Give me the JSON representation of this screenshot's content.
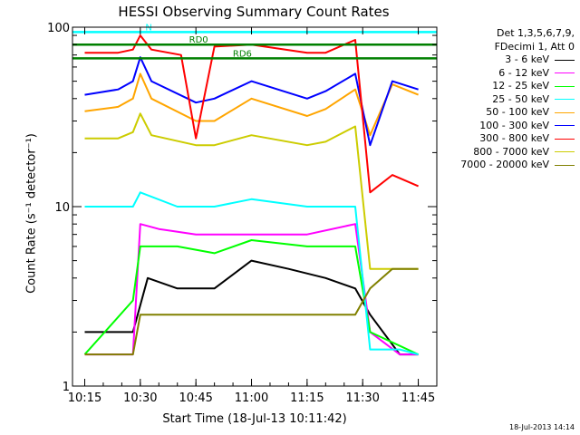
{
  "chart_data": {
    "type": "line",
    "title": "HESSI Observing Summary Count Rates",
    "xlabel": "Start Time (18-Jul-13 10:11:42)",
    "ylabel": "Count Rate (s⁻¹ detector⁻¹)",
    "yscale": "log",
    "ylim": [
      1,
      100
    ],
    "xlim": [
      "10:11:42",
      "11:50:00"
    ],
    "x_ticks": [
      "10:15",
      "10:30",
      "10:45",
      "11:00",
      "11:15",
      "11:30",
      "11:45"
    ],
    "y_ticks": [
      "1",
      "10",
      "100"
    ],
    "grid": false,
    "legend_position": "right",
    "legend_header": [
      "Det 1,3,5,6,7,9,",
      "FDecimi 1, Att 0"
    ],
    "series": [
      {
        "name": "3 - 6 keV",
        "color": "#000000",
        "x": [
          "10:15",
          "10:28",
          "10:32",
          "10:40",
          "10:50",
          "11:00",
          "11:10",
          "11:20",
          "11:28",
          "11:32",
          "11:40",
          "11:45"
        ],
        "y": [
          2,
          2,
          4,
          3.5,
          3.5,
          5,
          4.5,
          4,
          3.5,
          2.5,
          1.5,
          1.5
        ]
      },
      {
        "name": "6 - 12 keV",
        "color": "#ff00ff",
        "x": [
          "10:15",
          "10:28",
          "10:30",
          "10:35",
          "10:45",
          "11:00",
          "11:15",
          "11:28",
          "11:32",
          "11:40",
          "11:45"
        ],
        "y": [
          1.5,
          1.5,
          8,
          7.5,
          7,
          7,
          7,
          8,
          2,
          1.5,
          1.5
        ]
      },
      {
        "name": "12 - 25 keV",
        "color": "#00ff00",
        "x": [
          "10:15",
          "10:28",
          "10:30",
          "10:40",
          "10:50",
          "11:00",
          "11:15",
          "11:28",
          "11:32",
          "11:45"
        ],
        "y": [
          1.5,
          3,
          6,
          6,
          5.5,
          6.5,
          6,
          6,
          2,
          1.5
        ]
      },
      {
        "name": "25 - 50 keV",
        "color": "#00ffff",
        "x": [
          "10:15",
          "10:28",
          "10:30",
          "10:40",
          "10:50",
          "11:00",
          "11:15",
          "11:28",
          "11:32",
          "11:40",
          "11:45"
        ],
        "y": [
          10,
          10,
          12,
          10,
          10,
          11,
          10,
          10,
          1.6,
          1.6,
          1.5
        ]
      },
      {
        "name": "50 - 100 keV",
        "color": "#ffa500",
        "x": [
          "10:15",
          "10:24",
          "10:28",
          "10:30",
          "10:33",
          "10:45",
          "10:50",
          "11:00",
          "11:15",
          "11:20",
          "11:28",
          "11:32",
          "11:38",
          "11:45"
        ],
        "y": [
          34,
          36,
          40,
          55,
          40,
          30,
          30,
          40,
          32,
          35,
          45,
          25,
          48,
          42
        ]
      },
      {
        "name": "100 - 300 keV",
        "color": "#0000ff",
        "x": [
          "10:15",
          "10:24",
          "10:28",
          "10:30",
          "10:33",
          "10:45",
          "10:50",
          "11:00",
          "11:15",
          "11:20",
          "11:28",
          "11:32",
          "11:38",
          "11:45"
        ],
        "y": [
          42,
          45,
          50,
          68,
          50,
          38,
          40,
          50,
          40,
          44,
          55,
          22,
          50,
          45
        ]
      },
      {
        "name": "300 - 800 keV",
        "color": "#ff0000",
        "x": [
          "10:15",
          "10:24",
          "10:28",
          "10:30",
          "10:33",
          "10:41",
          "10:45",
          "10:50",
          "11:00",
          "11:15",
          "11:20",
          "11:28",
          "11:32",
          "11:38",
          "11:45"
        ],
        "y": [
          72,
          72,
          75,
          90,
          75,
          70,
          24,
          78,
          80,
          72,
          72,
          85,
          12,
          15,
          13
        ]
      },
      {
        "name": "800 - 7000 keV",
        "color": "#cccc00",
        "x": [
          "10:15",
          "10:24",
          "10:28",
          "10:30",
          "10:33",
          "10:45",
          "10:50",
          "11:00",
          "11:15",
          "11:20",
          "11:28",
          "11:32",
          "11:38",
          "11:45"
        ],
        "y": [
          24,
          24,
          26,
          33,
          25,
          22,
          22,
          25,
          22,
          23,
          28,
          4.5,
          4.5,
          4.5
        ]
      },
      {
        "name": "7000 - 20000 keV",
        "color": "#808000",
        "x": [
          "10:15",
          "10:28",
          "10:30",
          "10:45",
          "11:00",
          "11:15",
          "11:28",
          "11:32",
          "11:38",
          "11:45"
        ],
        "y": [
          1.5,
          1.5,
          2.5,
          2.5,
          2.5,
          2.5,
          2.5,
          3.5,
          4.5,
          4.5
        ]
      }
    ],
    "annotations": [
      {
        "label": "N",
        "color": "#00ffff",
        "value": 94
      },
      {
        "label": "RD0",
        "color": "#008000",
        "value": 80
      },
      {
        "label": "RD6",
        "color": "#008000",
        "value": 67
      }
    ]
  },
  "timestamp": "18-Jul-2013 14:14"
}
